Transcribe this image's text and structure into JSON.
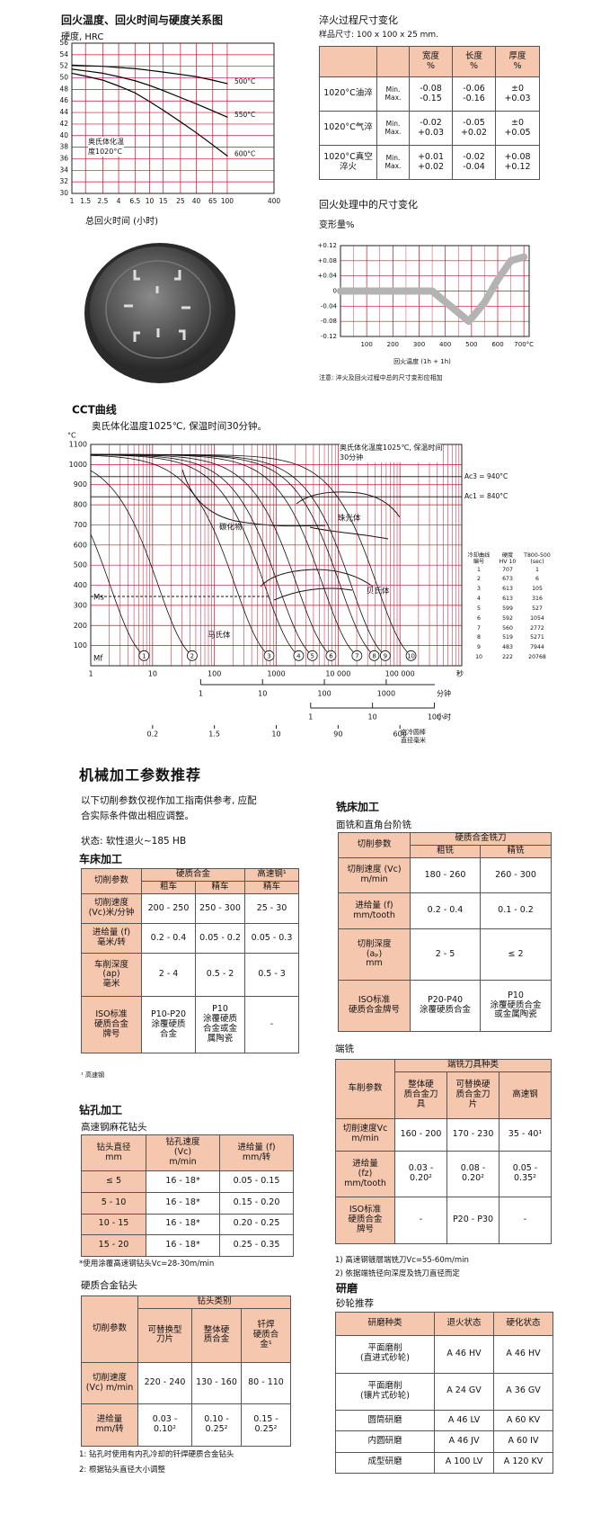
{
  "chart_data": [
    {
      "type": "line",
      "title": "回火温度、回火时间与硬度关系图",
      "y_label": "硬度, HRC",
      "x_label": "总回火时间 (小时)",
      "annotation": "奥氏体化温\n度1020°C",
      "log_x": true,
      "grid": true,
      "grid_color": "#c8102e",
      "xlim": [
        1,
        400
      ],
      "ylim": [
        30,
        56
      ],
      "xticks": [
        1,
        1.5,
        2.5,
        4,
        6.5,
        10,
        15,
        25,
        40,
        65,
        100,
        400
      ],
      "yticks": [
        30,
        32,
        34,
        36,
        38,
        40,
        42,
        44,
        46,
        48,
        50,
        52,
        54,
        56
      ],
      "x": [
        1,
        1.5,
        2.5,
        4,
        6.5,
        10,
        15,
        25,
        40,
        65,
        100
      ],
      "series": [
        {
          "name": "500°C",
          "color": "#000000",
          "values": [
            52.2,
            52.1,
            52,
            51.8,
            51.6,
            51.3,
            51,
            50.6,
            50.2,
            49.6,
            49
          ]
        },
        {
          "name": "550°C",
          "color": "#000000",
          "values": [
            51.5,
            51.2,
            50.8,
            50.2,
            49.5,
            48.7,
            47.8,
            46.6,
            45.5,
            44.3,
            43.2
          ]
        },
        {
          "name": "600°C",
          "color": "#000000",
          "values": [
            50.8,
            50.3,
            49.6,
            48.6,
            47.4,
            45.9,
            44.4,
            42.4,
            40.5,
            38.4,
            36.5
          ]
        }
      ]
    },
    {
      "type": "line",
      "title": "回火处理中的尺寸变化",
      "y_label": "变形量%",
      "x_label": "回火温度 (1h + 1h)",
      "note": "注意: 淬火及回火过程中总的尺寸变形应相加",
      "log_x": false,
      "grid": true,
      "grid_color": "#c8102e",
      "xlim": [
        0,
        720
      ],
      "ylim": [
        -0.12,
        0.12
      ],
      "xticks": [
        100,
        200,
        300,
        400,
        500,
        600,
        {
          "value": 700,
          "label": "700°C"
        }
      ],
      "yticks": [
        {
          "value": 0.12,
          "label": "+0.12"
        },
        {
          "value": 0.08,
          "label": "+0.08"
        },
        {
          "value": 0.04,
          "label": "+0.04"
        },
        0,
        -0.04,
        -0.08,
        -0.12
      ],
      "x": [
        0,
        100,
        200,
        300,
        350,
        420,
        490,
        550,
        600,
        650,
        700
      ],
      "series": [
        {
          "color": "#b3b3b3",
          "values": [
            0,
            0,
            0,
            0,
            0,
            -0.04,
            -0.08,
            -0.03,
            0.03,
            0.08,
            0.09
          ]
        }
      ]
    },
    {
      "type": "cct",
      "title": "CCT曲线",
      "subtitle": "奥氏体化温度1025℃, 保温时间30分钟。",
      "y_unit": "°C",
      "log_x": true,
      "grid": true,
      "grid_color": "#c8102e",
      "xlim": [
        1,
        1000000
      ],
      "ylim": [
        0,
        1100
      ],
      "yticks": [
        100,
        200,
        300,
        400,
        500,
        600,
        700,
        800,
        900,
        1000,
        1100
      ],
      "xticks": [
        1,
        10,
        100,
        1000,
        {
          "value": 10000,
          "label": "10 000"
        },
        {
          "value": 100000,
          "label": "100 000"
        }
      ],
      "x_unit": "秒",
      "minute_ticks": [
        1,
        10,
        100,
        1000
      ],
      "minute_unit": "分钟",
      "hour_ticks": [
        1,
        10,
        100
      ],
      "hour_unit": "小时",
      "diameter_ticks": [
        {
          "value": 10,
          "label": "0.2"
        },
        {
          "value": 100,
          "label": "1.5"
        },
        {
          "value": 1000,
          "label": "10"
        },
        {
          "value": 10000,
          "label": "90"
        },
        {
          "value": 100000,
          "label": "600"
        }
      ],
      "diameter_label": "空冷圆棒\n直径毫米",
      "ac_lines": [
        {
          "label": "Ac3 = 940°C",
          "value": 940
        },
        {
          "label": "Ac1 = 840°C",
          "value": 840
        }
      ],
      "annotations": [
        "奥氏体化温度1025℃, 保温时间\n30分钟",
        "碳化物",
        "珠光体",
        "贝氏体",
        "马氏体",
        "Ms",
        "Mf"
      ],
      "table": {
        "header": [
          "冷却曲线\n编号",
          "硬度\nHV 10",
          "T800-500\n(sec)"
        ],
        "rows": [
          [
            1,
            707,
            1
          ],
          [
            2,
            673,
            6
          ],
          [
            3,
            613,
            105
          ],
          [
            4,
            613,
            316
          ],
          [
            5,
            599,
            527
          ],
          [
            6,
            592,
            1054
          ],
          [
            7,
            560,
            2772
          ],
          [
            8,
            519,
            5271
          ],
          [
            9,
            483,
            7944
          ],
          [
            10,
            222,
            20768
          ]
        ]
      }
    }
  ],
  "quench_table": {
    "title": "淬火过程尺寸变化",
    "subtitle": "样品尺寸: 100 x 100 x 25 mm.",
    "header": [
      "宽度\n%",
      "长度\n%",
      "厚度\n%"
    ],
    "rows": [
      [
        "1020°C油淬",
        "Min.\nMax.",
        "-0.08\n-0.15",
        "-0.06\n-0.16",
        "±0\n+0.03"
      ],
      [
        "1020°C气淬",
        "Min.\nMax.",
        "-0.02\n+0.03",
        "-0.05\n+0.02",
        "±0\n+0.05"
      ],
      [
        "1020°C真空\n淬火",
        "Min.\nMax.",
        "+0.01\n+0.02",
        "-0.02\n-0.04",
        "+0.08\n+0.12"
      ]
    ]
  },
  "machining": {
    "title": "机械加工参数推荐",
    "intro": "以下切削参数仅视作加工指南供参考, 应配\n合实际条件做出相应调整。",
    "condition": "状态: 软性退火~185 HB",
    "turning": {
      "title": "车床加工",
      "header": [
        "切削参数",
        "硬质合金",
        "高速钢¹",
        "粗车",
        "精车",
        "精车"
      ],
      "rows": [
        [
          "切削速度\n(Vc)米/分钟",
          "200 - 250",
          "250 - 300",
          "25 - 30"
        ],
        [
          "进给量 (f)\n毫米/转",
          "0.2 - 0.4",
          "0.05 - 0.2",
          "0.05 - 0.3"
        ],
        [
          "车削深度\n(ap)\n毫米",
          "2 - 4",
          "0.5 - 2",
          "0.5 - 3"
        ],
        [
          "ISO标准\n硬质合金\n牌号",
          "P10-P20\n涂覆硬质\n合金",
          "P10\n涂覆硬质\n合金或金\n属陶瓷",
          "-"
        ]
      ],
      "footnote": "¹ 高速钢"
    },
    "drilling": {
      "title": "钻孔加工",
      "subtitle": "高速钢麻花钻头",
      "header": [
        "钻头直径\nmm",
        "钻孔速度\n(Vc)\nm/min",
        "进给量 (f)\nmm/转"
      ],
      "rows": [
        [
          "≤ 5",
          "16 - 18*",
          "0.05 - 0.15"
        ],
        [
          "5 - 10",
          "16 - 18*",
          "0.15 - 0.20"
        ],
        [
          "10 - 15",
          "16 - 18*",
          "0.20 - 0.25"
        ],
        [
          "15 - 20",
          "16 - 18*",
          "0.25 - 0.35"
        ]
      ],
      "note": "*使用涂覆高速钢钻头Vc=28-30m/min"
    },
    "carbide_drill": {
      "title": "硬质合金钻头",
      "header": [
        "切削参数",
        "钻头类别",
        "可替换型\n刀片",
        "整体硬\n质合金",
        "钎焊\n硬质合\n金¹"
      ],
      "rows": [
        [
          "切削速度\n(Vc) m/min",
          "220 - 240",
          "130 - 160",
          "80 - 110"
        ],
        [
          "进给量\nmm/转",
          "0.03 -\n0.10²",
          "0.10 -\n0.25²",
          "0.15 -\n0.25²"
        ]
      ],
      "notes": [
        "1: 钻孔时使用有内孔冷却的钎焊硬质合金钻头",
        "2: 根据钻头直径大小调整"
      ]
    },
    "milling": {
      "title": "铣床加工",
      "subtitle": "面铣和直角台阶铣",
      "header": [
        "切削参数",
        "硬质合金铣刀",
        "粗铣",
        "精铣"
      ],
      "rows": [
        [
          "切削速度 (Vc)\nm/min",
          "180 - 260",
          "260 - 300"
        ],
        [
          "进给量 (f)\nmm/tooth",
          "0.2 - 0.4",
          "0.1 - 0.2"
        ],
        [
          "切削深度\n(aₚ)\nmm",
          "2 - 5",
          "≤ 2"
        ],
        [
          "ISO标准\n硬质合金牌号",
          "P20-P40\n涂覆硬质合金",
          "P10\n涂覆硬质合金\n或金属陶瓷"
        ]
      ]
    },
    "end_milling": {
      "title": "端铣",
      "header": [
        "车削参数",
        "端铣刀具种类",
        "整体硬\n质合金刀\n具",
        "可替换硬\n质合金刀\n片",
        "高速钢"
      ],
      "rows": [
        [
          "切削速度Vc\nm/min",
          "160 - 200",
          "170 - 230",
          "35 - 40¹"
        ],
        [
          "进给量\n(fz)\nmm/tooth",
          "0.03 -\n0.20²",
          "0.08 -\n0.20²",
          "0.05 -\n0.35²"
        ],
        [
          "ISO标准\n硬质合金\n牌号",
          "-",
          "P20 - P30",
          "-"
        ]
      ],
      "notes": [
        "1) 高速钢镀層端铣刀Vc=55-60m/min",
        "2) 依据端铣径向深度及铣刀直径而定"
      ]
    },
    "grinding": {
      "title": "研磨",
      "subtitle": "砂轮推荐",
      "header": [
        "研磨种类",
        "退火状态",
        "硬化状态"
      ],
      "rows": [
        [
          "平面磨削\n(直进式砂轮)",
          "A 46 HV",
          "A 46 HV"
        ],
        [
          "平面磨削\n(镶片式砂轮)",
          "A 24 GV",
          "A 36 GV"
        ],
        [
          "圆筒研磨",
          "A 46 LV",
          "A 60 KV"
        ],
        [
          "内圆研磨",
          "A 46 JV",
          "A 60 IV"
        ],
        [
          "成型研磨",
          "A 100 LV",
          "A 120 KV"
        ]
      ]
    }
  }
}
